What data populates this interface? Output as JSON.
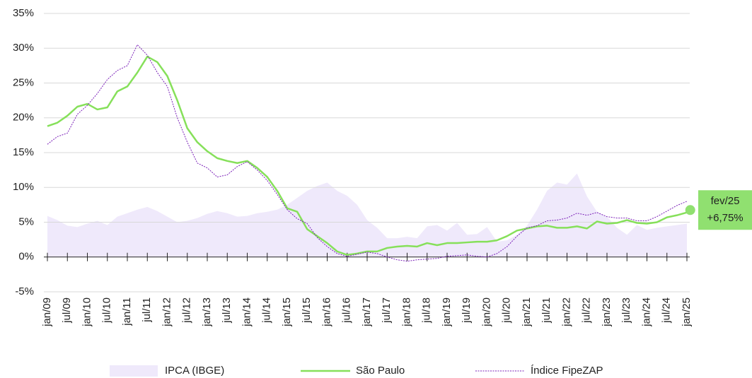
{
  "chart_data": {
    "type": "line",
    "categories": [
      "jan/09",
      null,
      "jul/09",
      null,
      "jan/10",
      null,
      "jul/10",
      null,
      "jan/11",
      null,
      "jul/11",
      null,
      "jan/12",
      null,
      "jul/12",
      null,
      "jan/13",
      null,
      "jul/13",
      null,
      "jan/14",
      null,
      "jul/14",
      null,
      "jan/15",
      null,
      "jul/15",
      null,
      "jan/16",
      null,
      "jul/16",
      null,
      "jan/17",
      null,
      "jul/17",
      null,
      "jan/18",
      null,
      "jul/18",
      null,
      "jan/19",
      null,
      "jul/19",
      null,
      "jan/20",
      null,
      "jul/20",
      null,
      "jan/21",
      null,
      "jul/21",
      null,
      "jan/22",
      null,
      "jul/22",
      null,
      "jan/23",
      null,
      "jul/23",
      null,
      "jan/24",
      null,
      "jul/24",
      null,
      "jan/25"
    ],
    "series": [
      {
        "name": "IPCA (IBGE)",
        "kind": "area",
        "color": "#efe9fb",
        "values": [
          5.9,
          5.3,
          4.5,
          4.3,
          4.8,
          5.2,
          4.6,
          5.8,
          6.3,
          6.8,
          7.2,
          6.6,
          5.8,
          5.0,
          5.2,
          5.6,
          6.2,
          6.6,
          6.3,
          5.8,
          5.9,
          6.3,
          6.5,
          6.8,
          7.5,
          8.5,
          9.5,
          10.2,
          10.7,
          9.5,
          8.8,
          7.5,
          5.3,
          4.2,
          2.7,
          2.7,
          2.9,
          2.7,
          4.4,
          4.6,
          3.8,
          4.9,
          3.2,
          3.3,
          4.3,
          2.2,
          2.4,
          3.2,
          4.5,
          6.8,
          9.5,
          10.7,
          10.4,
          12.0,
          8.7,
          6.5,
          5.8,
          4.2,
          3.2,
          4.6,
          3.9,
          4.2,
          4.4,
          4.6,
          4.8
        ]
      },
      {
        "name": "São Paulo",
        "kind": "line",
        "color": "#86e05a",
        "values": [
          18.8,
          19.3,
          20.3,
          21.6,
          22.0,
          21.2,
          21.5,
          23.8,
          24.5,
          26.5,
          28.8,
          28.0,
          26.0,
          22.5,
          18.5,
          16.5,
          15.2,
          14.2,
          13.8,
          13.5,
          13.8,
          12.8,
          11.5,
          9.5,
          7.0,
          6.5,
          4.0,
          3.0,
          2.0,
          0.8,
          0.3,
          0.5,
          0.8,
          0.8,
          1.3,
          1.5,
          1.6,
          1.5,
          2.0,
          1.7,
          2.0,
          2.0,
          2.1,
          2.2,
          2.2,
          2.4,
          3.0,
          3.8,
          4.1,
          4.4,
          4.5,
          4.2,
          4.2,
          4.4,
          4.1,
          5.1,
          4.8,
          4.9,
          5.3,
          4.9,
          4.8,
          5.0,
          5.7,
          6.0,
          6.4
        ]
      },
      {
        "name": "Índice FipeZAP",
        "kind": "dotted",
        "color": "#7a1fb8",
        "values": [
          16.2,
          17.3,
          17.8,
          20.5,
          21.8,
          23.5,
          25.5,
          26.8,
          27.5,
          30.5,
          29.0,
          26.5,
          24.5,
          20.0,
          16.5,
          13.5,
          12.8,
          11.5,
          11.8,
          13.0,
          13.7,
          12.5,
          11.0,
          9.0,
          6.8,
          5.5,
          4.8,
          2.8,
          1.5,
          0.5,
          0.1,
          0.4,
          0.7,
          0.5,
          0.0,
          -0.4,
          -0.6,
          -0.4,
          -0.3,
          -0.2,
          0.1,
          0.2,
          0.3,
          0.1,
          0.0,
          0.5,
          1.5,
          3.0,
          4.2,
          4.5,
          5.2,
          5.3,
          5.6,
          6.3,
          6.0,
          6.4,
          5.8,
          5.6,
          5.6,
          5.2,
          5.2,
          5.8,
          6.6,
          7.4,
          8.0
        ]
      }
    ],
    "ylim": [
      -5,
      35
    ],
    "yticks": [
      {
        "value": -5,
        "label": "-5%"
      },
      {
        "value": 0,
        "label": "0%"
      },
      {
        "value": 5,
        "label": "5%"
      },
      {
        "value": 10,
        "label": "10%"
      },
      {
        "value": 15,
        "label": "15%"
      },
      {
        "value": 20,
        "label": "20%"
      },
      {
        "value": 25,
        "label": "25%"
      },
      {
        "value": 30,
        "label": "30%"
      },
      {
        "value": 35,
        "label": "35%"
      }
    ],
    "grid": true,
    "annotation": {
      "label": "fev/25",
      "value": 6.75,
      "value_label": "+6,75%",
      "color": "#90e070"
    }
  }
}
